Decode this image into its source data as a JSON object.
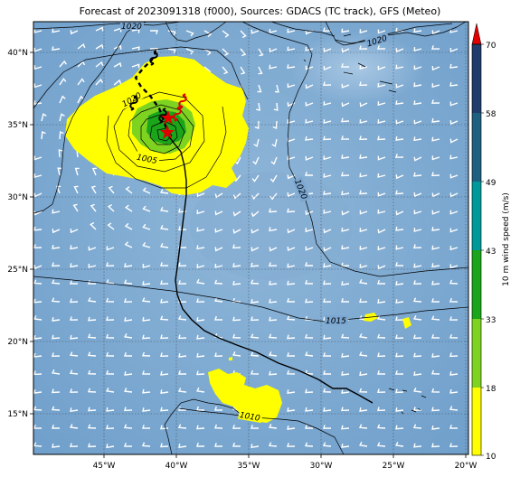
{
  "title": "Forecast of 2023091318 (f000), Sources: GDACS (TC track), GFS (Meteo)",
  "lon_ticks": [
    "45°W",
    "40°W",
    "35°W",
    "30°W",
    "25°W",
    "20°W"
  ],
  "lat_ticks": [
    "40°N",
    "35°N",
    "30°N",
    "25°N",
    "20°N",
    "15°N"
  ],
  "isobar_labels": [
    "1020",
    "1020",
    "1020",
    "1020",
    "1005",
    "1015",
    "1010"
  ],
  "colorbar": {
    "title": "10 m wind speed (m/s)",
    "levels": [
      "10",
      "18",
      "33",
      "43",
      "49",
      "58",
      "70"
    ],
    "colors": [
      "#ffff00",
      "#7ed321",
      "#1aa51a",
      "#009999",
      "#1f5f7f",
      "#1f3c6a",
      "#e00000"
    ]
  },
  "storm_symbols": [
    "hurricane-symbol",
    "hurricane-symbol",
    "hurricane-symbol",
    "hurricane-symbol",
    "hurricane-symbol"
  ]
}
